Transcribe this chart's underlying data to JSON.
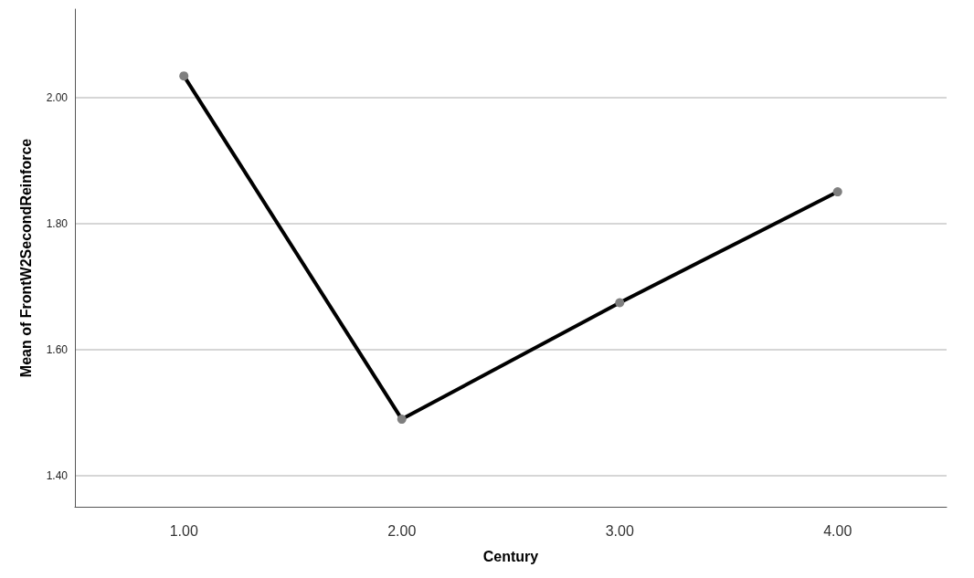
{
  "chart_data": {
    "type": "line",
    "xlabel": "Century",
    "ylabel": "Mean of FrontW2SecondReinforce",
    "categories": [
      "1.00",
      "2.00",
      "3.00",
      "4.00"
    ],
    "series": [
      {
        "color": "#000000",
        "values": [
          2.034,
          1.489,
          1.674,
          1.85
        ]
      }
    ],
    "ylim": [
      1.35,
      2.14
    ],
    "yticks": [
      {
        "value": 1.4,
        "label": "1.40"
      },
      {
        "value": 1.6,
        "label": "1.60"
      },
      {
        "value": 1.8,
        "label": "1.80"
      },
      {
        "value": 2.0,
        "label": "2.00"
      }
    ],
    "grid": "y",
    "marker": "circle"
  }
}
